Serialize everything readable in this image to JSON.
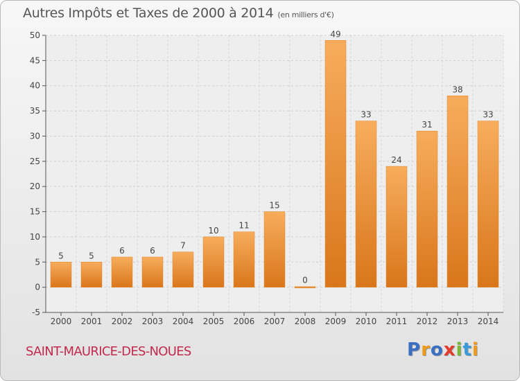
{
  "chart_data": {
    "type": "bar",
    "title": "Autres Impôts et Taxes de 2000 à 2014",
    "subtitle": "(en milliers d'€)",
    "categories": [
      "2000",
      "2001",
      "2002",
      "2003",
      "2004",
      "2005",
      "2006",
      "2007",
      "2008",
      "2009",
      "2010",
      "2011",
      "2012",
      "2013",
      "2014"
    ],
    "values": [
      5,
      5,
      6,
      6,
      7,
      10,
      11,
      15,
      0,
      49,
      33,
      24,
      31,
      38,
      33
    ],
    "data_labels": [
      "5",
      "5",
      "6",
      "6",
      "7",
      "10",
      "11",
      "15",
      "0",
      "49",
      "33",
      "24",
      "31",
      "38",
      "33"
    ],
    "ylim": [
      -5,
      50
    ],
    "yticks": [
      -5,
      0,
      5,
      10,
      15,
      20,
      25,
      30,
      35,
      40,
      45,
      50
    ],
    "grid": true,
    "bar_color": "#f0922e",
    "bar_color_light": "#f7ad5d",
    "bar_color_dark": "#d9761b"
  },
  "footer": {
    "commune": "SAINT-MAURICE-DES-NOUES",
    "brand": [
      "P",
      "r",
      "o",
      "x",
      "i",
      "t",
      "i"
    ],
    "brand_colors": [
      "#3a6fc4",
      "#f09a1a",
      "#3a6fc4",
      "#e23d2b",
      "#7ab83a",
      "#3a9bd8",
      "#f09a1a"
    ]
  }
}
